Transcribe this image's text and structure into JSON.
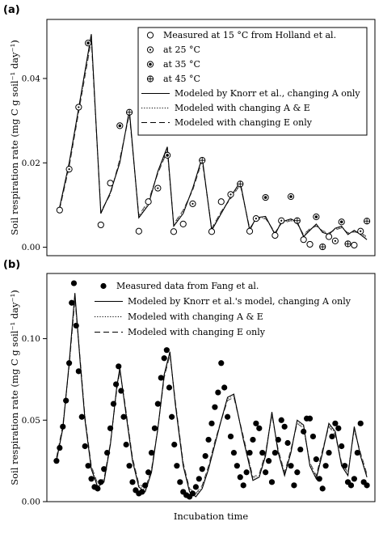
{
  "chart_data": [
    {
      "type": "line",
      "panel": "(a)",
      "ylabel": "Soil respiration rate (mg C g soil⁻¹ day⁻¹)",
      "xlabel": "",
      "ylim": [
        -0.002,
        0.054
      ],
      "xlim": [
        0,
        100
      ],
      "yticks": [
        "0.00",
        "0.02",
        "0.04"
      ],
      "ytick_values": [
        0,
        0.02,
        0.04
      ],
      "grid": false,
      "legend_position": "top-right",
      "legend": [
        {
          "label": "Measured at 15 °C from Holland et al.",
          "kind": "open-circle"
        },
        {
          "label": "at 25 °C",
          "kind": "circle-dot"
        },
        {
          "label": "at 35 °C",
          "kind": "circle-star"
        },
        {
          "label": "at 45 °C",
          "kind": "circle-plus"
        },
        {
          "label": "Modeled by Knorr et al., changing A only",
          "kind": "solid"
        },
        {
          "label": "Modeled with changing  A & E",
          "kind": "dotted"
        },
        {
          "label": "Modeled with changing E only",
          "kind": "dashed"
        }
      ],
      "measured": [
        {
          "x": 2,
          "y": 0.0088,
          "m": "open"
        },
        {
          "x": 5,
          "y": 0.0185,
          "m": "dot"
        },
        {
          "x": 8,
          "y": 0.0332,
          "m": "dot"
        },
        {
          "x": 11,
          "y": 0.0484,
          "m": "star"
        },
        {
          "x": 15,
          "y": 0.0053,
          "m": "open"
        },
        {
          "x": 18,
          "y": 0.0152,
          "m": "open"
        },
        {
          "x": 21,
          "y": 0.0288,
          "m": "star"
        },
        {
          "x": 24,
          "y": 0.032,
          "m": "plus"
        },
        {
          "x": 27,
          "y": 0.0038,
          "m": "open"
        },
        {
          "x": 30,
          "y": 0.0108,
          "m": "open"
        },
        {
          "x": 33,
          "y": 0.014,
          "m": "dot"
        },
        {
          "x": 36,
          "y": 0.0218,
          "m": "star"
        },
        {
          "x": 38,
          "y": 0.0037,
          "m": "open"
        },
        {
          "x": 41,
          "y": 0.0055,
          "m": "open"
        },
        {
          "x": 44,
          "y": 0.0103,
          "m": "dot"
        },
        {
          "x": 47,
          "y": 0.0206,
          "m": "plus"
        },
        {
          "x": 50,
          "y": 0.0037,
          "m": "open"
        },
        {
          "x": 53,
          "y": 0.0108,
          "m": "open"
        },
        {
          "x": 56,
          "y": 0.0125,
          "m": "dot"
        },
        {
          "x": 59,
          "y": 0.015,
          "m": "plus"
        },
        {
          "x": 62,
          "y": 0.0038,
          "m": "open"
        },
        {
          "x": 64,
          "y": 0.0068,
          "m": "dot"
        },
        {
          "x": 67,
          "y": 0.0118,
          "m": "star"
        },
        {
          "x": 70,
          "y": 0.0028,
          "m": "open"
        },
        {
          "x": 72,
          "y": 0.0063,
          "m": "dot"
        },
        {
          "x": 75,
          "y": 0.012,
          "m": "star"
        },
        {
          "x": 77,
          "y": 0.0063,
          "m": "plus"
        },
        {
          "x": 79,
          "y": 0.0018,
          "m": "open"
        },
        {
          "x": 81,
          "y": 0.0007,
          "m": "open"
        },
        {
          "x": 83,
          "y": 0.0072,
          "m": "star"
        },
        {
          "x": 85,
          "y": 0.0001,
          "m": "plus"
        },
        {
          "x": 87,
          "y": 0.0025,
          "m": "open"
        },
        {
          "x": 89,
          "y": 0.0015,
          "m": "dot"
        },
        {
          "x": 91,
          "y": 0.006,
          "m": "star"
        },
        {
          "x": 93,
          "y": 0.0008,
          "m": "plus"
        },
        {
          "x": 95,
          "y": 0.0005,
          "m": "open"
        },
        {
          "x": 97,
          "y": 0.0038,
          "m": "dot"
        },
        {
          "x": 99,
          "y": 0.0062,
          "m": "plus"
        }
      ],
      "series": [
        {
          "style": "solid",
          "x": [
            2,
            5,
            8,
            12,
            15,
            18,
            21,
            24,
            27,
            30,
            33,
            36,
            38,
            41,
            44,
            47,
            50,
            53,
            56,
            59,
            62,
            64,
            67,
            70,
            72,
            75,
            77,
            79,
            81,
            83,
            85,
            87,
            89,
            91,
            93,
            95,
            97,
            99
          ],
          "y": [
            0.0095,
            0.02,
            0.033,
            0.0505,
            0.008,
            0.013,
            0.02,
            0.0325,
            0.007,
            0.01,
            0.018,
            0.0238,
            0.005,
            0.008,
            0.014,
            0.0213,
            0.004,
            0.008,
            0.012,
            0.0155,
            0.004,
            0.007,
            0.0073,
            0.003,
            0.006,
            0.0067,
            0.006,
            0.0025,
            0.004,
            0.0055,
            0.0035,
            0.003,
            0.0045,
            0.005,
            0.003,
            0.004,
            0.003,
            0.0018
          ]
        },
        {
          "style": "dotted",
          "x": [
            2,
            5,
            8,
            12,
            15,
            18,
            21,
            24,
            27,
            30,
            33,
            36,
            38,
            41,
            44,
            47,
            50,
            53,
            56,
            59,
            62,
            64,
            67,
            70,
            72,
            75,
            77,
            79,
            81,
            83,
            85,
            87,
            89,
            91,
            93,
            95,
            97,
            99
          ],
          "y": [
            0.0092,
            0.0195,
            0.0325,
            0.0498,
            0.0083,
            0.0128,
            0.0205,
            0.032,
            0.0072,
            0.0105,
            0.0178,
            0.0232,
            0.0052,
            0.0085,
            0.0138,
            0.021,
            0.0043,
            0.0083,
            0.0118,
            0.015,
            0.0043,
            0.0068,
            0.007,
            0.0033,
            0.0058,
            0.0065,
            0.0058,
            0.0028,
            0.0042,
            0.0052,
            0.0037,
            0.0032,
            0.0043,
            0.0048,
            0.0032,
            0.0038,
            0.0032,
            0.0022
          ]
        },
        {
          "style": "dashed",
          "x": [
            2,
            5,
            8,
            12,
            15,
            18,
            21,
            24,
            27,
            30,
            33,
            36,
            38,
            41,
            44,
            47,
            50,
            53,
            56,
            59,
            62,
            64,
            67,
            70,
            72,
            75,
            77,
            79,
            81,
            83,
            85,
            87,
            89,
            91,
            93,
            95,
            97,
            99
          ],
          "y": [
            0.009,
            0.019,
            0.032,
            0.049,
            0.0085,
            0.0125,
            0.021,
            0.0315,
            0.0075,
            0.011,
            0.0175,
            0.0228,
            0.0055,
            0.0088,
            0.0135,
            0.0205,
            0.0045,
            0.0085,
            0.0115,
            0.0148,
            0.0045,
            0.0066,
            0.0068,
            0.0035,
            0.0056,
            0.0063,
            0.0056,
            0.003,
            0.0044,
            0.005,
            0.0039,
            0.0034,
            0.0041,
            0.0046,
            0.0034,
            0.0036,
            0.0034,
            0.0025
          ]
        }
      ]
    },
    {
      "type": "line",
      "panel": "(b)",
      "ylabel": "Soil respiration rate (mg C g soil⁻¹ day⁻¹)",
      "xlabel": "Incubation time",
      "ylim": [
        0,
        0.14
      ],
      "xlim": [
        0,
        100
      ],
      "yticks": [
        "0.00",
        "0.05",
        "0.10"
      ],
      "ytick_values": [
        0,
        0.05,
        0.1
      ],
      "grid": false,
      "legend_position": "top-right",
      "legend": [
        {
          "label": "Measured data from Fang et al.",
          "kind": "filled-circle"
        },
        {
          "label": "Modeled by Knorr et al.'s model, changing A only",
          "kind": "solid"
        },
        {
          "label": "Modeled with changing A & E",
          "kind": "dotted"
        },
        {
          "label": "Modeled with changing E only",
          "kind": "dashed"
        }
      ],
      "measured_x": [
        1,
        2,
        3,
        4,
        5,
        5.8,
        6.5,
        7.2,
        8,
        9,
        10,
        11,
        12,
        13,
        14,
        15,
        16,
        17,
        18,
        19,
        19.8,
        20.6,
        21.4,
        22.2,
        23,
        24,
        25,
        26,
        27,
        28,
        29,
        30,
        31,
        32,
        33,
        34,
        35,
        35.8,
        36.6,
        37.4,
        38.2,
        39,
        40,
        41,
        42,
        43,
        44,
        45,
        46,
        47,
        48,
        49,
        50,
        51,
        52,
        53,
        54,
        55,
        56,
        57,
        58,
        59,
        60,
        61,
        62,
        63,
        64,
        65,
        66,
        67,
        68,
        69,
        70,
        71,
        72,
        73,
        74,
        75,
        76,
        77,
        78,
        79,
        80,
        81,
        82,
        83,
        84,
        85,
        86,
        87,
        88,
        89,
        90,
        91,
        92,
        93,
        94,
        95,
        96,
        97,
        98,
        99
      ],
      "measured_y": [
        0.025,
        0.033,
        0.046,
        0.062,
        0.085,
        0.122,
        0.134,
        0.108,
        0.08,
        0.052,
        0.034,
        0.022,
        0.014,
        0.009,
        0.008,
        0.012,
        0.02,
        0.03,
        0.045,
        0.06,
        0.072,
        0.083,
        0.068,
        0.052,
        0.035,
        0.022,
        0.012,
        0.007,
        0.005,
        0.006,
        0.01,
        0.018,
        0.03,
        0.045,
        0.06,
        0.076,
        0.088,
        0.093,
        0.07,
        0.052,
        0.035,
        0.022,
        0.012,
        0.006,
        0.004,
        0.003,
        0.005,
        0.009,
        0.014,
        0.02,
        0.028,
        0.038,
        0.048,
        0.058,
        0.067,
        0.085,
        0.07,
        0.052,
        0.04,
        0.03,
        0.022,
        0.015,
        0.01,
        0.018,
        0.03,
        0.038,
        0.048,
        0.045,
        0.03,
        0.018,
        0.025,
        0.012,
        0.03,
        0.038,
        0.05,
        0.046,
        0.036,
        0.022,
        0.01,
        0.018,
        0.032,
        0.043,
        0.051,
        0.051,
        0.04,
        0.026,
        0.014,
        0.008,
        0.022,
        0.03,
        0.04,
        0.048,
        0.045,
        0.034,
        0.022,
        0.012,
        0.01,
        0.014,
        0.03,
        0.048,
        0.012,
        0.01
      ],
      "series": [
        {
          "style": "solid",
          "x": [
            1,
            3,
            5,
            6.8,
            8.5,
            10,
            12,
            14,
            16,
            18,
            20,
            21,
            22.5,
            25,
            27,
            29,
            31,
            33,
            35,
            36.8,
            38.5,
            41,
            43,
            45,
            47,
            49,
            51,
            53,
            55,
            57,
            60,
            63,
            65,
            67,
            69,
            71,
            73,
            75,
            77,
            79,
            81,
            83,
            85,
            87,
            89,
            91,
            93,
            95,
            97,
            99
          ],
          "y": [
            0.025,
            0.045,
            0.085,
            0.128,
            0.085,
            0.05,
            0.02,
            0.009,
            0.012,
            0.035,
            0.07,
            0.082,
            0.06,
            0.025,
            0.009,
            0.006,
            0.018,
            0.045,
            0.078,
            0.092,
            0.06,
            0.022,
            0.006,
            0.003,
            0.008,
            0.02,
            0.035,
            0.05,
            0.064,
            0.066,
            0.038,
            0.013,
            0.015,
            0.028,
            0.055,
            0.03,
            0.016,
            0.03,
            0.05,
            0.047,
            0.022,
            0.014,
            0.03,
            0.048,
            0.043,
            0.022,
            0.016,
            0.046,
            0.028,
            0.015
          ]
        },
        {
          "style": "dotted",
          "x": [
            1,
            3,
            5,
            6.8,
            8.5,
            10,
            12,
            14,
            16,
            18,
            20,
            21,
            22.5,
            25,
            27,
            29,
            31,
            33,
            35,
            36.8,
            38.5,
            41,
            43,
            45,
            47,
            49,
            51,
            53,
            55,
            57,
            60,
            63,
            65,
            67,
            69,
            71,
            73,
            75,
            77,
            79,
            81,
            83,
            85,
            87,
            89,
            91,
            93,
            95,
            97,
            99
          ],
          "y": [
            0.026,
            0.046,
            0.084,
            0.126,
            0.086,
            0.051,
            0.021,
            0.01,
            0.013,
            0.035,
            0.069,
            0.081,
            0.061,
            0.026,
            0.01,
            0.007,
            0.019,
            0.045,
            0.077,
            0.091,
            0.061,
            0.023,
            0.007,
            0.004,
            0.009,
            0.021,
            0.036,
            0.05,
            0.063,
            0.065,
            0.039,
            0.014,
            0.016,
            0.029,
            0.054,
            0.031,
            0.017,
            0.031,
            0.049,
            0.046,
            0.023,
            0.015,
            0.031,
            0.047,
            0.042,
            0.023,
            0.017,
            0.045,
            0.029,
            0.016
          ]
        },
        {
          "style": "dashed",
          "x": [
            1,
            3,
            5,
            6.8,
            8.5,
            10,
            12,
            14,
            16,
            18,
            20,
            21,
            22.5,
            25,
            27,
            29,
            31,
            33,
            35,
            36.8,
            38.5,
            41,
            43,
            45,
            47,
            49,
            51,
            53,
            55,
            57,
            60,
            63,
            65,
            67,
            69,
            71,
            73,
            75,
            77,
            79,
            81,
            83,
            85,
            87,
            89,
            91,
            93,
            95,
            97,
            99
          ],
          "y": [
            0.027,
            0.047,
            0.083,
            0.124,
            0.087,
            0.052,
            0.022,
            0.011,
            0.014,
            0.036,
            0.068,
            0.08,
            0.062,
            0.027,
            0.011,
            0.008,
            0.02,
            0.045,
            0.076,
            0.09,
            0.062,
            0.024,
            0.008,
            0.005,
            0.01,
            0.022,
            0.037,
            0.05,
            0.062,
            0.064,
            0.04,
            0.015,
            0.017,
            0.03,
            0.053,
            0.032,
            0.018,
            0.032,
            0.048,
            0.045,
            0.024,
            0.016,
            0.032,
            0.046,
            0.041,
            0.024,
            0.018,
            0.044,
            0.03,
            0.017
          ]
        }
      ]
    }
  ]
}
